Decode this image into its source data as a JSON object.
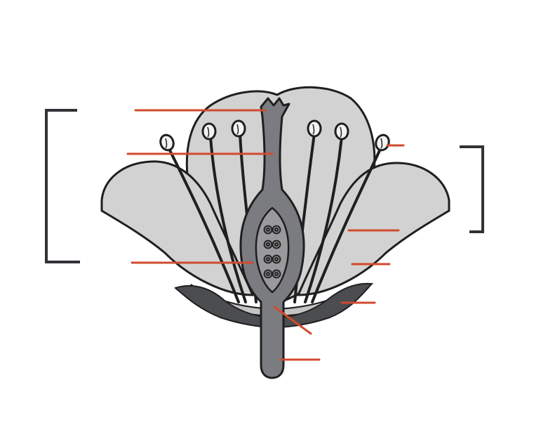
{
  "diagram": {
    "type": "flower-longitudinal-section",
    "labels": [],
    "colors": {
      "background": "#ffffff",
      "petal_fill": "#d2d2d2",
      "inner_fill": "#c4c4c4",
      "outline": "#1f1f1f",
      "sepal": "#4b4d50",
      "pistil_fill": "#7a7c80",
      "ovary_fill": "#9a9a9c",
      "ovary_inner": "#7b7d80",
      "anther_fill": "#f2f2f2",
      "leader_line": "#d24a2e",
      "bracket": "#303236"
    },
    "leader_line_count": 11,
    "bracket_count": 2,
    "ovule_count": 4,
    "stamen_count": 6
  }
}
